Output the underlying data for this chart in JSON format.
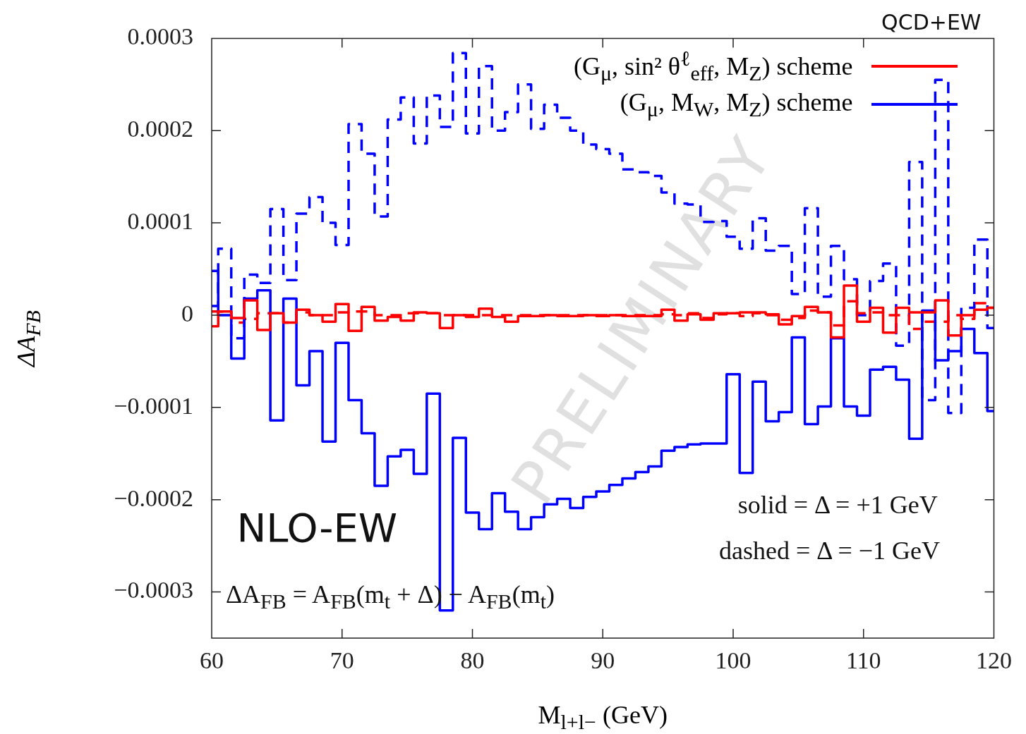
{
  "chart_data": {
    "type": "step",
    "title": "QCD+EW",
    "xlabel": "M$_{l+l−}$  (GeV)",
    "ylabel": "ΔA$_{FB}$",
    "x": [
      60,
      61,
      62,
      63,
      64,
      65,
      66,
      67,
      68,
      69,
      70,
      71,
      72,
      73,
      74,
      75,
      76,
      77,
      78,
      79,
      80,
      81,
      82,
      83,
      84,
      85,
      86,
      87,
      88,
      89,
      90,
      91,
      92,
      93,
      94,
      95,
      96,
      97,
      98,
      99,
      100,
      101,
      102,
      103,
      104,
      105,
      106,
      107,
      108,
      109,
      110,
      111,
      112,
      113,
      114,
      115,
      116,
      117,
      118,
      119,
      120
    ],
    "series": [
      {
        "name": "(G$_{μ}$, sin² θ$^{ℓ}$$_{eff}$, M$_{Z}$) scheme",
        "color": "#ff0000",
        "line_style": "solid",
        "values": [
          -1.2e-05,
          4e-06,
          -3e-06,
          1.6e-05,
          -1.6e-05,
          2e-06,
          -8e-06,
          6e-06,
          0.0,
          -7e-06,
          1.2e-05,
          -1.7e-05,
          9e-06,
          -6e-06,
          -2e-06,
          -6e-06,
          3e-06,
          2e-06,
          -1.4e-05,
          0.0,
          -2e-06,
          7e-06,
          -2e-06,
          -7e-06,
          -1e-06,
          -1e-06,
          0.0,
          -1e-06,
          -1e-06,
          0.0,
          -1e-06,
          0.0,
          -1e-06,
          -1e-06,
          -1e-06,
          6e-06,
          -6e-06,
          1e-06,
          -5e-06,
          2e-06,
          2e-06,
          3e-06,
          3e-06,
          1e-06,
          -1e-05,
          -1e-06,
          9e-06,
          3e-06,
          -2.4e-05,
          3.2e-05,
          -7e-06,
          8e-06,
          -1.9e-05,
          8e-06,
          3e-06,
          3e-06,
          1.6e-05,
          -2.2e-05,
          0.0,
          6e-06,
          8e-06
        ]
      },
      {
        "name": "(G$_{μ}$, M$_{W}$, M$_{Z}$) scheme",
        "color": "#0000ff",
        "line_style": "solid",
        "values": [
          4.8e-05,
          0.0,
          -4.7e-05,
          1.8e-05,
          2.7e-05,
          -0.000114,
          1.8e-05,
          -7.6e-05,
          -3.9e-05,
          -0.000137,
          -3e-05,
          -9.2e-05,
          -0.000128,
          -0.000185,
          -0.000153,
          -0.000146,
          -0.000172,
          -8.5e-05,
          -0.00032,
          -0.000133,
          -0.000214,
          -0.000232,
          -0.000193,
          -0.000213,
          -0.000232,
          -0.000219,
          -0.000205,
          -0.000199,
          -0.000209,
          -0.000197,
          -0.000191,
          -0.000184,
          -0.000177,
          -0.00017,
          -0.000164,
          -0.000147,
          -0.000143,
          -0.00014,
          -0.000139,
          -0.000139,
          -6.4e-05,
          -0.000171,
          -7.2e-05,
          -0.000115,
          -0.000105,
          -2.4e-05,
          -0.000118,
          -9.9e-05,
          -2.5e-05,
          -9.9e-05,
          -0.000109,
          -5.9e-05,
          -5.6e-05,
          -7e-05,
          -0.000134,
          5e-06,
          -4.9e-05,
          -3.9e-05,
          -1.5e-05,
          -4.1e-05,
          -0.000104
        ]
      },
      {
        "color": "#ff0000",
        "line_style": "dashed",
        "values": [
          4e-06,
          4e-06,
          -8e-06,
          -4e-06,
          2e-06,
          2e-06,
          -8e-06,
          3e-06,
          0.0,
          0.0,
          3e-06,
          4e-06,
          4e-06,
          0.0,
          0.0,
          2e-06,
          2e-06,
          2e-06,
          0.0,
          0.0,
          0.0,
          0.0,
          0.0,
          0.0,
          0.0,
          0.0,
          0.0,
          0.0,
          0.0,
          0.0,
          0.0,
          0.0,
          0.0,
          0.0,
          0.0,
          1e-06,
          0.0,
          2e-06,
          -3e-06,
          1e-06,
          2e-06,
          -1e-06,
          2e-06,
          0.0,
          -5e-06,
          -3e-06,
          5e-06,
          3e-06,
          -1.1e-05,
          1.5e-05,
          2e-06,
          3e-06,
          0.0,
          0.0,
          -1.5e-05,
          -7e-06,
          -7e-06,
          0.0,
          -4e-06,
          1.3e-05,
          8e-06
        ]
      },
      {
        "color": "#0000ff",
        "line_style": "dashed",
        "values": [
          1e-05,
          7.2e-05,
          -2.5e-05,
          4.4e-05,
          3.5e-05,
          0.000115,
          3.8e-05,
          0.00011,
          0.000128,
          0.0001,
          7.6e-05,
          0.000207,
          0.000175,
          0.000107,
          0.000212,
          0.000236,
          0.000186,
          0.000238,
          0.000204,
          0.000284,
          0.000197,
          0.00027,
          0.0002,
          0.00022,
          0.00025,
          0.000202,
          0.000228,
          0.000214,
          0.0002,
          0.000185,
          0.00018,
          0.000175,
          0.000158,
          0.000155,
          0.000151,
          0.000133,
          0.000121,
          0.00012,
          0.000101,
          0.000102,
          8.5e-05,
          7.2e-05,
          0.000105,
          7e-05,
          7.5e-05,
          2.3e-05,
          0.000116,
          2e-05,
          7.5e-05,
          3.9e-05,
          0.0,
          3.7e-05,
          5.6e-05,
          -3.3e-05,
          0.000166,
          -9.2e-05,
          0.000255,
          -0.000106,
          8e-06,
          8.2e-05,
          -1.4e-05
        ]
      }
    ],
    "xlim": [
      60,
      120
    ],
    "xticks": [
      60,
      70,
      80,
      90,
      100,
      110,
      120
    ],
    "ylim": [
      -0.00035,
      0.0003
    ],
    "yticks": [
      {
        "value": -0.0003,
        "label": "−0.0003"
      },
      {
        "value": -0.0002,
        "label": "−0.0002"
      },
      {
        "value": -0.0001,
        "label": "−0.0001"
      },
      0,
      0.0001,
      0.0002,
      0.0003
    ],
    "grid": false,
    "legend": "top right",
    "marker": "none",
    "annotations": [
      "NLO-EW",
      "solid = Δ = +1 GeV",
      "dashed = Δ = −1 GeV",
      "ΔA$_{FB}$ = A$_{FB}$(m$_{t}$ + Δ) − A$_{FB}$(m$_{t}$)",
      "PRELIMINARY"
    ]
  }
}
